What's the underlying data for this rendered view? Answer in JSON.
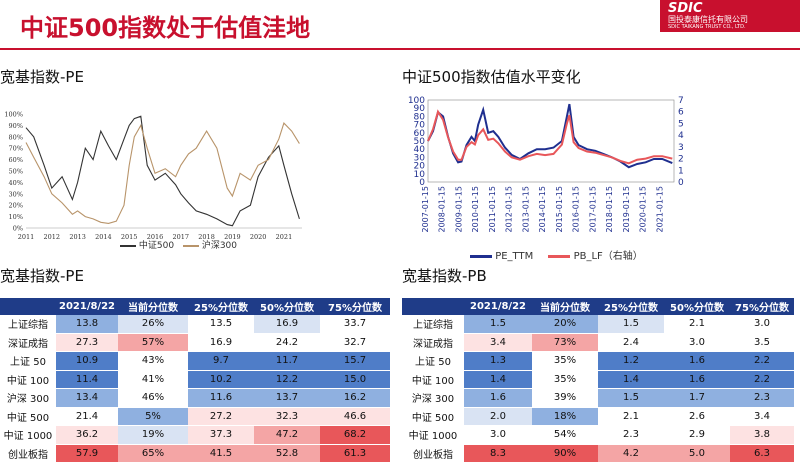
{
  "title": "中证500指数处于估值洼地",
  "logo": {
    "brand": "SDIC",
    "cn": "国投泰康信托有限公司",
    "en": "SDIC TAIKANG TRUST CO., LTD."
  },
  "left_chart_title": "宽基指数-PE",
  "right_chart_title": "中证500指数估值水平变化",
  "left_table_title": "宽基指数-PE",
  "right_table_title": "宽基指数-PB",
  "colors": {
    "brand_red": "#c8102e",
    "header_blue": "#1f3c88",
    "blue_dark": "#4f7dc8",
    "blue_mid": "#8fb0e0",
    "blue_light": "#d9e3f3",
    "red_dark": "#e8575a",
    "red_mid": "#f4a5a5",
    "red_light": "#fde2e2"
  },
  "chart_data": [
    {
      "type": "line",
      "ylim": [
        0,
        100
      ],
      "y_tick_labels": [
        "0%",
        "10%",
        "20%",
        "30%",
        "40%",
        "50%",
        "60%",
        "70%",
        "80%",
        "90%",
        "100%"
      ],
      "x_tick_labels": [
        "2011",
        "2012",
        "2013",
        "2014",
        "2015",
        "2016",
        "2017",
        "2018",
        "2019",
        "2020",
        "2021"
      ],
      "legend": "bottom",
      "series": [
        {
          "name": "中证500",
          "color": "#333333",
          "x": [
            2011.0,
            2011.3,
            2011.7,
            2012.0,
            2012.4,
            2012.8,
            2013.0,
            2013.3,
            2013.6,
            2013.9,
            2014.2,
            2014.5,
            2014.8,
            2015.0,
            2015.2,
            2015.45,
            2015.7,
            2016.0,
            2016.4,
            2016.8,
            2017.0,
            2017.3,
            2017.6,
            2018.0,
            2018.4,
            2018.8,
            2019.0,
            2019.3,
            2019.7,
            2020.0,
            2020.4,
            2020.8,
            2021.0,
            2021.3,
            2021.6
          ],
          "values": [
            88,
            80,
            55,
            35,
            45,
            25,
            40,
            70,
            60,
            85,
            72,
            60,
            78,
            90,
            96,
            98,
            55,
            42,
            48,
            38,
            30,
            22,
            15,
            12,
            8,
            3,
            2,
            15,
            20,
            45,
            62,
            72,
            55,
            30,
            8
          ]
        },
        {
          "name": "沪深300",
          "color": "#b8946a",
          "x": [
            2011.0,
            2011.3,
            2011.7,
            2012.0,
            2012.4,
            2012.8,
            2013.0,
            2013.3,
            2013.6,
            2013.9,
            2014.2,
            2014.5,
            2014.8,
            2015.0,
            2015.2,
            2015.45,
            2015.7,
            2016.0,
            2016.4,
            2016.8,
            2017.0,
            2017.3,
            2017.6,
            2018.0,
            2018.4,
            2018.8,
            2019.0,
            2019.3,
            2019.7,
            2020.0,
            2020.4,
            2020.8,
            2021.0,
            2021.3,
            2021.6
          ],
          "values": [
            75,
            62,
            45,
            30,
            22,
            12,
            15,
            10,
            8,
            5,
            4,
            6,
            20,
            55,
            80,
            90,
            70,
            48,
            52,
            45,
            55,
            65,
            70,
            85,
            70,
            35,
            28,
            48,
            42,
            55,
            60,
            78,
            92,
            85,
            74
          ]
        }
      ]
    },
    {
      "type": "line",
      "ylim": [
        0,
        100
      ],
      "y2lim": [
        0,
        7
      ],
      "y_ticks": [
        0,
        10,
        20,
        30,
        40,
        50,
        60,
        70,
        80,
        90,
        100
      ],
      "y2_ticks": [
        0,
        1,
        2,
        3,
        4,
        5,
        6,
        7
      ],
      "x_tick_labels": [
        "2007-01-15",
        "2008-01-15",
        "2009-01-15",
        "2010-01-15",
        "2011-01-15",
        "2012-01-15",
        "2013-01-15",
        "2014-01-15",
        "2015-01-15",
        "2016-01-15",
        "2017-01-15",
        "2018-01-15",
        "2019-01-15",
        "2020-01-15",
        "2021-01-15"
      ],
      "legend": "bottom",
      "series": [
        {
          "name": "PE_TTM",
          "color": "#1f2f8f",
          "axis": "left",
          "x": [
            2007.0,
            2007.3,
            2007.6,
            2007.9,
            2008.2,
            2008.5,
            2008.8,
            2009.0,
            2009.3,
            2009.6,
            2009.8,
            2010.0,
            2010.3,
            2010.6,
            2010.9,
            2011.2,
            2011.6,
            2012.0,
            2012.5,
            2013.0,
            2013.5,
            2014.0,
            2014.5,
            2015.0,
            2015.3,
            2015.45,
            2015.7,
            2016.0,
            2016.5,
            2017.0,
            2017.5,
            2018.0,
            2018.5,
            2019.0,
            2019.5,
            2020.0,
            2020.5,
            2021.0,
            2021.6
          ],
          "values": [
            50,
            62,
            85,
            80,
            55,
            35,
            24,
            25,
            45,
            55,
            50,
            70,
            88,
            60,
            62,
            55,
            42,
            33,
            28,
            35,
            40,
            40,
            42,
            50,
            80,
            95,
            55,
            45,
            40,
            38,
            34,
            30,
            25,
            18,
            22,
            24,
            28,
            28,
            23
          ]
        },
        {
          "name": "PB_LF（右轴）",
          "color": "#e8575a",
          "axis": "right",
          "x": [
            2007.0,
            2007.3,
            2007.6,
            2007.9,
            2008.2,
            2008.5,
            2008.8,
            2009.0,
            2009.3,
            2009.6,
            2009.8,
            2010.0,
            2010.3,
            2010.6,
            2010.9,
            2011.2,
            2011.6,
            2012.0,
            2012.5,
            2013.0,
            2013.5,
            2014.0,
            2014.5,
            2015.0,
            2015.3,
            2015.45,
            2015.7,
            2016.0,
            2016.5,
            2017.0,
            2017.5,
            2018.0,
            2018.5,
            2019.0,
            2019.5,
            2020.0,
            2020.5,
            2021.0,
            2021.6
          ],
          "values": [
            3.5,
            4.5,
            6.0,
            5.3,
            3.8,
            2.6,
            1.9,
            1.9,
            3.0,
            3.4,
            3.2,
            4.0,
            4.5,
            3.6,
            3.7,
            3.3,
            2.6,
            2.1,
            1.9,
            2.2,
            2.4,
            2.3,
            2.4,
            3.2,
            5.0,
            5.7,
            3.4,
            2.9,
            2.6,
            2.5,
            2.3,
            2.1,
            1.8,
            1.6,
            1.9,
            2.0,
            2.2,
            2.2,
            2.0
          ]
        }
      ]
    }
  ],
  "left_legend": [
    "中证500",
    "沪深300"
  ],
  "right_legend": [
    "PE_TTM",
    "PB_LF（右轴）"
  ],
  "pe_table": {
    "headers": [
      "2021/8/22",
      "当前分位数",
      "25%分位数",
      "50%分位数",
      "75%分位数"
    ],
    "rows": [
      {
        "name": "上证综指",
        "vals": [
          "13.8",
          "26%",
          "13.5",
          "16.9",
          "33.7"
        ],
        "shade": [
          "bm",
          "bl",
          "w",
          "bl",
          "w"
        ]
      },
      {
        "name": "深证成指",
        "vals": [
          "27.3",
          "57%",
          "16.9",
          "24.2",
          "32.7"
        ],
        "shade": [
          "rl",
          "rm",
          "w",
          "w",
          "w"
        ]
      },
      {
        "name": "上证 50",
        "vals": [
          "10.9",
          "43%",
          "9.7",
          "11.7",
          "15.7"
        ],
        "shade": [
          "bd",
          "w",
          "bd",
          "bd",
          "bd"
        ]
      },
      {
        "name": "中证 100",
        "vals": [
          "11.4",
          "41%",
          "10.2",
          "12.2",
          "15.0"
        ],
        "shade": [
          "bd",
          "w",
          "bd",
          "bd",
          "bd"
        ]
      },
      {
        "name": "沪深 300",
        "vals": [
          "13.4",
          "46%",
          "11.6",
          "13.7",
          "16.2"
        ],
        "shade": [
          "bm",
          "w",
          "bm",
          "bm",
          "bm"
        ]
      },
      {
        "name": "中证 500",
        "vals": [
          "21.4",
          "5%",
          "27.2",
          "32.3",
          "46.6"
        ],
        "shade": [
          "w",
          "bm",
          "rl",
          "rl",
          "rl"
        ]
      },
      {
        "name": "中证 1000",
        "vals": [
          "36.2",
          "19%",
          "37.3",
          "47.2",
          "68.2"
        ],
        "shade": [
          "rl",
          "bl",
          "rl",
          "rm",
          "rd"
        ]
      },
      {
        "name": "创业板指",
        "vals": [
          "57.9",
          "65%",
          "41.5",
          "52.8",
          "61.3"
        ],
        "shade": [
          "rd",
          "rm",
          "rm",
          "rm",
          "rd"
        ]
      }
    ]
  },
  "pb_table": {
    "headers": [
      "2021/8/22",
      "当前分位数",
      "25%分位数",
      "50%分位数",
      "75%分位数"
    ],
    "rows": [
      {
        "name": "上证综指",
        "vals": [
          "1.5",
          "20%",
          "1.5",
          "2.1",
          "3.0"
        ],
        "shade": [
          "bm",
          "bm",
          "bl",
          "w",
          "w"
        ]
      },
      {
        "name": "深证成指",
        "vals": [
          "3.4",
          "73%",
          "2.4",
          "3.0",
          "3.5"
        ],
        "shade": [
          "rl",
          "rm",
          "w",
          "w",
          "w"
        ]
      },
      {
        "name": "上证 50",
        "vals": [
          "1.3",
          "35%",
          "1.2",
          "1.6",
          "2.2"
        ],
        "shade": [
          "bd",
          "w",
          "bd",
          "bd",
          "bd"
        ]
      },
      {
        "name": "中证 100",
        "vals": [
          "1.4",
          "35%",
          "1.4",
          "1.6",
          "2.2"
        ],
        "shade": [
          "bd",
          "w",
          "bd",
          "bd",
          "bd"
        ]
      },
      {
        "name": "沪深 300",
        "vals": [
          "1.6",
          "39%",
          "1.5",
          "1.7",
          "2.3"
        ],
        "shade": [
          "bm",
          "w",
          "bm",
          "bm",
          "bm"
        ]
      },
      {
        "name": "中证 500",
        "vals": [
          "2.0",
          "18%",
          "2.1",
          "2.6",
          "3.4"
        ],
        "shade": [
          "bl",
          "bm",
          "w",
          "w",
          "w"
        ]
      },
      {
        "name": "中证 1000",
        "vals": [
          "3.0",
          "54%",
          "2.3",
          "2.9",
          "3.8"
        ],
        "shade": [
          "w",
          "w",
          "w",
          "w",
          "rl"
        ]
      },
      {
        "name": "创业板指",
        "vals": [
          "8.3",
          "90%",
          "4.2",
          "5.0",
          "6.3"
        ],
        "shade": [
          "rd",
          "rd",
          "rm",
          "rm",
          "rd"
        ]
      }
    ]
  }
}
